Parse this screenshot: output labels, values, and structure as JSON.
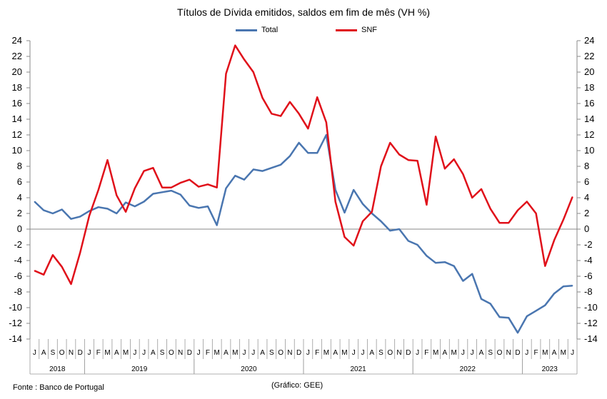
{
  "chart_data": {
    "type": "line",
    "title": "Títulos de Dívida emitidos, saldos em fim de mês  (VH %)",
    "ylim": [
      -14,
      24
    ],
    "yticks": [
      -14,
      -12,
      -10,
      -8,
      -6,
      -4,
      -2,
      0,
      2,
      4,
      6,
      8,
      10,
      12,
      14,
      16,
      18,
      20,
      22,
      24
    ],
    "y_axes": "left and right",
    "grid": false,
    "legend_position": "top",
    "month_labels": [
      "J",
      "A",
      "S",
      "O",
      "N",
      "D",
      "J",
      "F",
      "M",
      "A",
      "M",
      "J",
      "J",
      "A",
      "S",
      "O",
      "N",
      "D",
      "J",
      "F",
      "M",
      "A",
      "M",
      "J",
      "J",
      "A",
      "S",
      "O",
      "N",
      "D",
      "J",
      "F",
      "M",
      "A",
      "M",
      "J",
      "J",
      "A",
      "S",
      "O",
      "N",
      "D",
      "J",
      "F",
      "M",
      "A",
      "M",
      "J",
      "J",
      "A",
      "S",
      "O",
      "N",
      "D",
      "J",
      "F",
      "M",
      "A",
      "M",
      "J"
    ],
    "years": [
      {
        "label": "2018",
        "start": 0,
        "count": 6
      },
      {
        "label": "2019",
        "start": 6,
        "count": 12
      },
      {
        "label": "2020",
        "start": 18,
        "count": 12
      },
      {
        "label": "2021",
        "start": 30,
        "count": 12
      },
      {
        "label": "2022",
        "start": 42,
        "count": 12
      },
      {
        "label": "2023",
        "start": 54,
        "count": 6
      }
    ],
    "series": [
      {
        "name": "Total",
        "color": "#4a76b0",
        "values": [
          3.5,
          2.4,
          2.0,
          2.5,
          1.3,
          1.6,
          2.3,
          2.8,
          2.6,
          2.0,
          3.4,
          2.9,
          3.5,
          4.5,
          4.7,
          4.9,
          4.4,
          3.0,
          2.7,
          2.9,
          0.5,
          5.2,
          6.8,
          6.3,
          7.6,
          7.4,
          7.8,
          8.2,
          9.3,
          11.0,
          9.7,
          9.7,
          12.0,
          5.0,
          2.1,
          5.0,
          3.2,
          2.0,
          1.0,
          -0.2,
          0.0,
          -1.5,
          -2.0,
          -3.4,
          -4.3,
          -4.2,
          -4.7,
          -6.6,
          -5.7,
          -8.9,
          -9.5,
          -11.2,
          -11.3,
          -13.2,
          -11.1,
          -10.4,
          -9.7,
          -8.2,
          -7.3,
          -7.2
        ]
      },
      {
        "name": "SNF",
        "color": "#e0101a",
        "values": [
          -5.3,
          -5.8,
          -3.3,
          -4.8,
          -7.0,
          -3.0,
          1.7,
          5.0,
          8.8,
          4.3,
          2.2,
          5.2,
          7.4,
          7.8,
          5.3,
          5.3,
          5.9,
          6.3,
          5.4,
          5.7,
          5.3,
          19.8,
          23.4,
          21.6,
          20.0,
          16.7,
          14.7,
          14.4,
          16.2,
          14.7,
          12.8,
          16.8,
          13.6,
          3.5,
          -1.0,
          -2.1,
          1.0,
          2.2,
          8.0,
          11.0,
          9.5,
          8.8,
          8.7,
          3.1,
          11.8,
          7.7,
          8.9,
          7.0,
          4.0,
          5.1,
          2.6,
          0.8,
          0.8,
          2.4,
          3.5,
          2.0,
          -4.7,
          -1.4,
          1.2,
          4.1
        ]
      }
    ]
  },
  "notes": {
    "source": "Fonte : Banco de Portugal",
    "credit": "(Gráfico: GEE)"
  }
}
